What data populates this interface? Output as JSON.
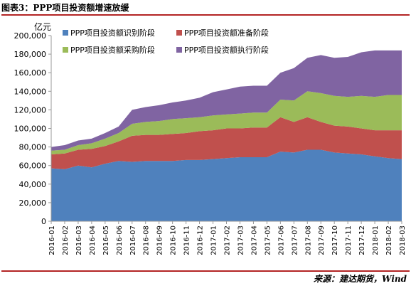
{
  "figure": {
    "title": "图表3：PPP项目投资额增速放缓",
    "source": "来源：建达期货，Wind"
  },
  "chart_data": {
    "type": "area",
    "stacked": true,
    "y_unit": "亿元",
    "ylim": [
      0,
      200000
    ],
    "yticks": [
      "0",
      "20,000",
      "40,000",
      "60,000",
      "80,000",
      "100,000",
      "120,000",
      "140,000",
      "160,000",
      "180,000",
      "200,000"
    ],
    "ytick_values": [
      0,
      20000,
      40000,
      60000,
      80000,
      100000,
      120000,
      140000,
      160000,
      180000,
      200000
    ],
    "legend_position": "top-center",
    "grid": false,
    "x": [
      "2016-01",
      "2016-02",
      "2016-03",
      "2016-04",
      "2016-05",
      "2016-06",
      "2016-07",
      "2016-08",
      "2016-09",
      "2016-10",
      "2016-11",
      "2016-12",
      "2017-01",
      "2017-02",
      "2017-03",
      "2017-04",
      "2017-05",
      "2017-06",
      "2017-07",
      "2017-08",
      "2017-09",
      "2017-10",
      "2017-11",
      "2017-12",
      "2018-01",
      "2018-02",
      "2018-03"
    ],
    "series": [
      {
        "name": "PPP项目投资额识别阶段",
        "color": "#4f81bd",
        "values": [
          57000,
          56000,
          60000,
          58000,
          62000,
          65000,
          64000,
          65000,
          65000,
          65000,
          66000,
          66000,
          67000,
          68000,
          69000,
          69000,
          69000,
          75000,
          74000,
          77000,
          77000,
          74000,
          73000,
          72000,
          70000,
          68000,
          67000
        ]
      },
      {
        "name": "PPP项目投资额准备阶段",
        "color": "#c0504d",
        "values": [
          15000,
          17000,
          17000,
          20000,
          19000,
          21000,
          28000,
          28000,
          28000,
          29000,
          29000,
          31000,
          31000,
          32000,
          31000,
          32000,
          32000,
          37000,
          33000,
          35000,
          30000,
          29000,
          29000,
          28000,
          28000,
          30000,
          31000
        ]
      },
      {
        "name": "PPP项目投资额采购阶段",
        "color": "#9bbb59",
        "values": [
          4000,
          4000,
          5000,
          6000,
          8000,
          9000,
          13000,
          14000,
          15000,
          16000,
          16000,
          15000,
          16000,
          15000,
          16000,
          16000,
          16000,
          19000,
          23000,
          28000,
          31000,
          32000,
          32000,
          35000,
          36000,
          38000,
          38000
        ]
      },
      {
        "name": "PPP项目投资额执行阶段",
        "color": "#8064a2",
        "values": [
          4000,
          5000,
          5000,
          5000,
          6000,
          7000,
          15000,
          16000,
          17000,
          18000,
          19000,
          21000,
          25000,
          27000,
          29000,
          29000,
          29000,
          29000,
          35000,
          36000,
          41000,
          41000,
          43000,
          47000,
          50000,
          48000,
          48000
        ]
      }
    ]
  }
}
